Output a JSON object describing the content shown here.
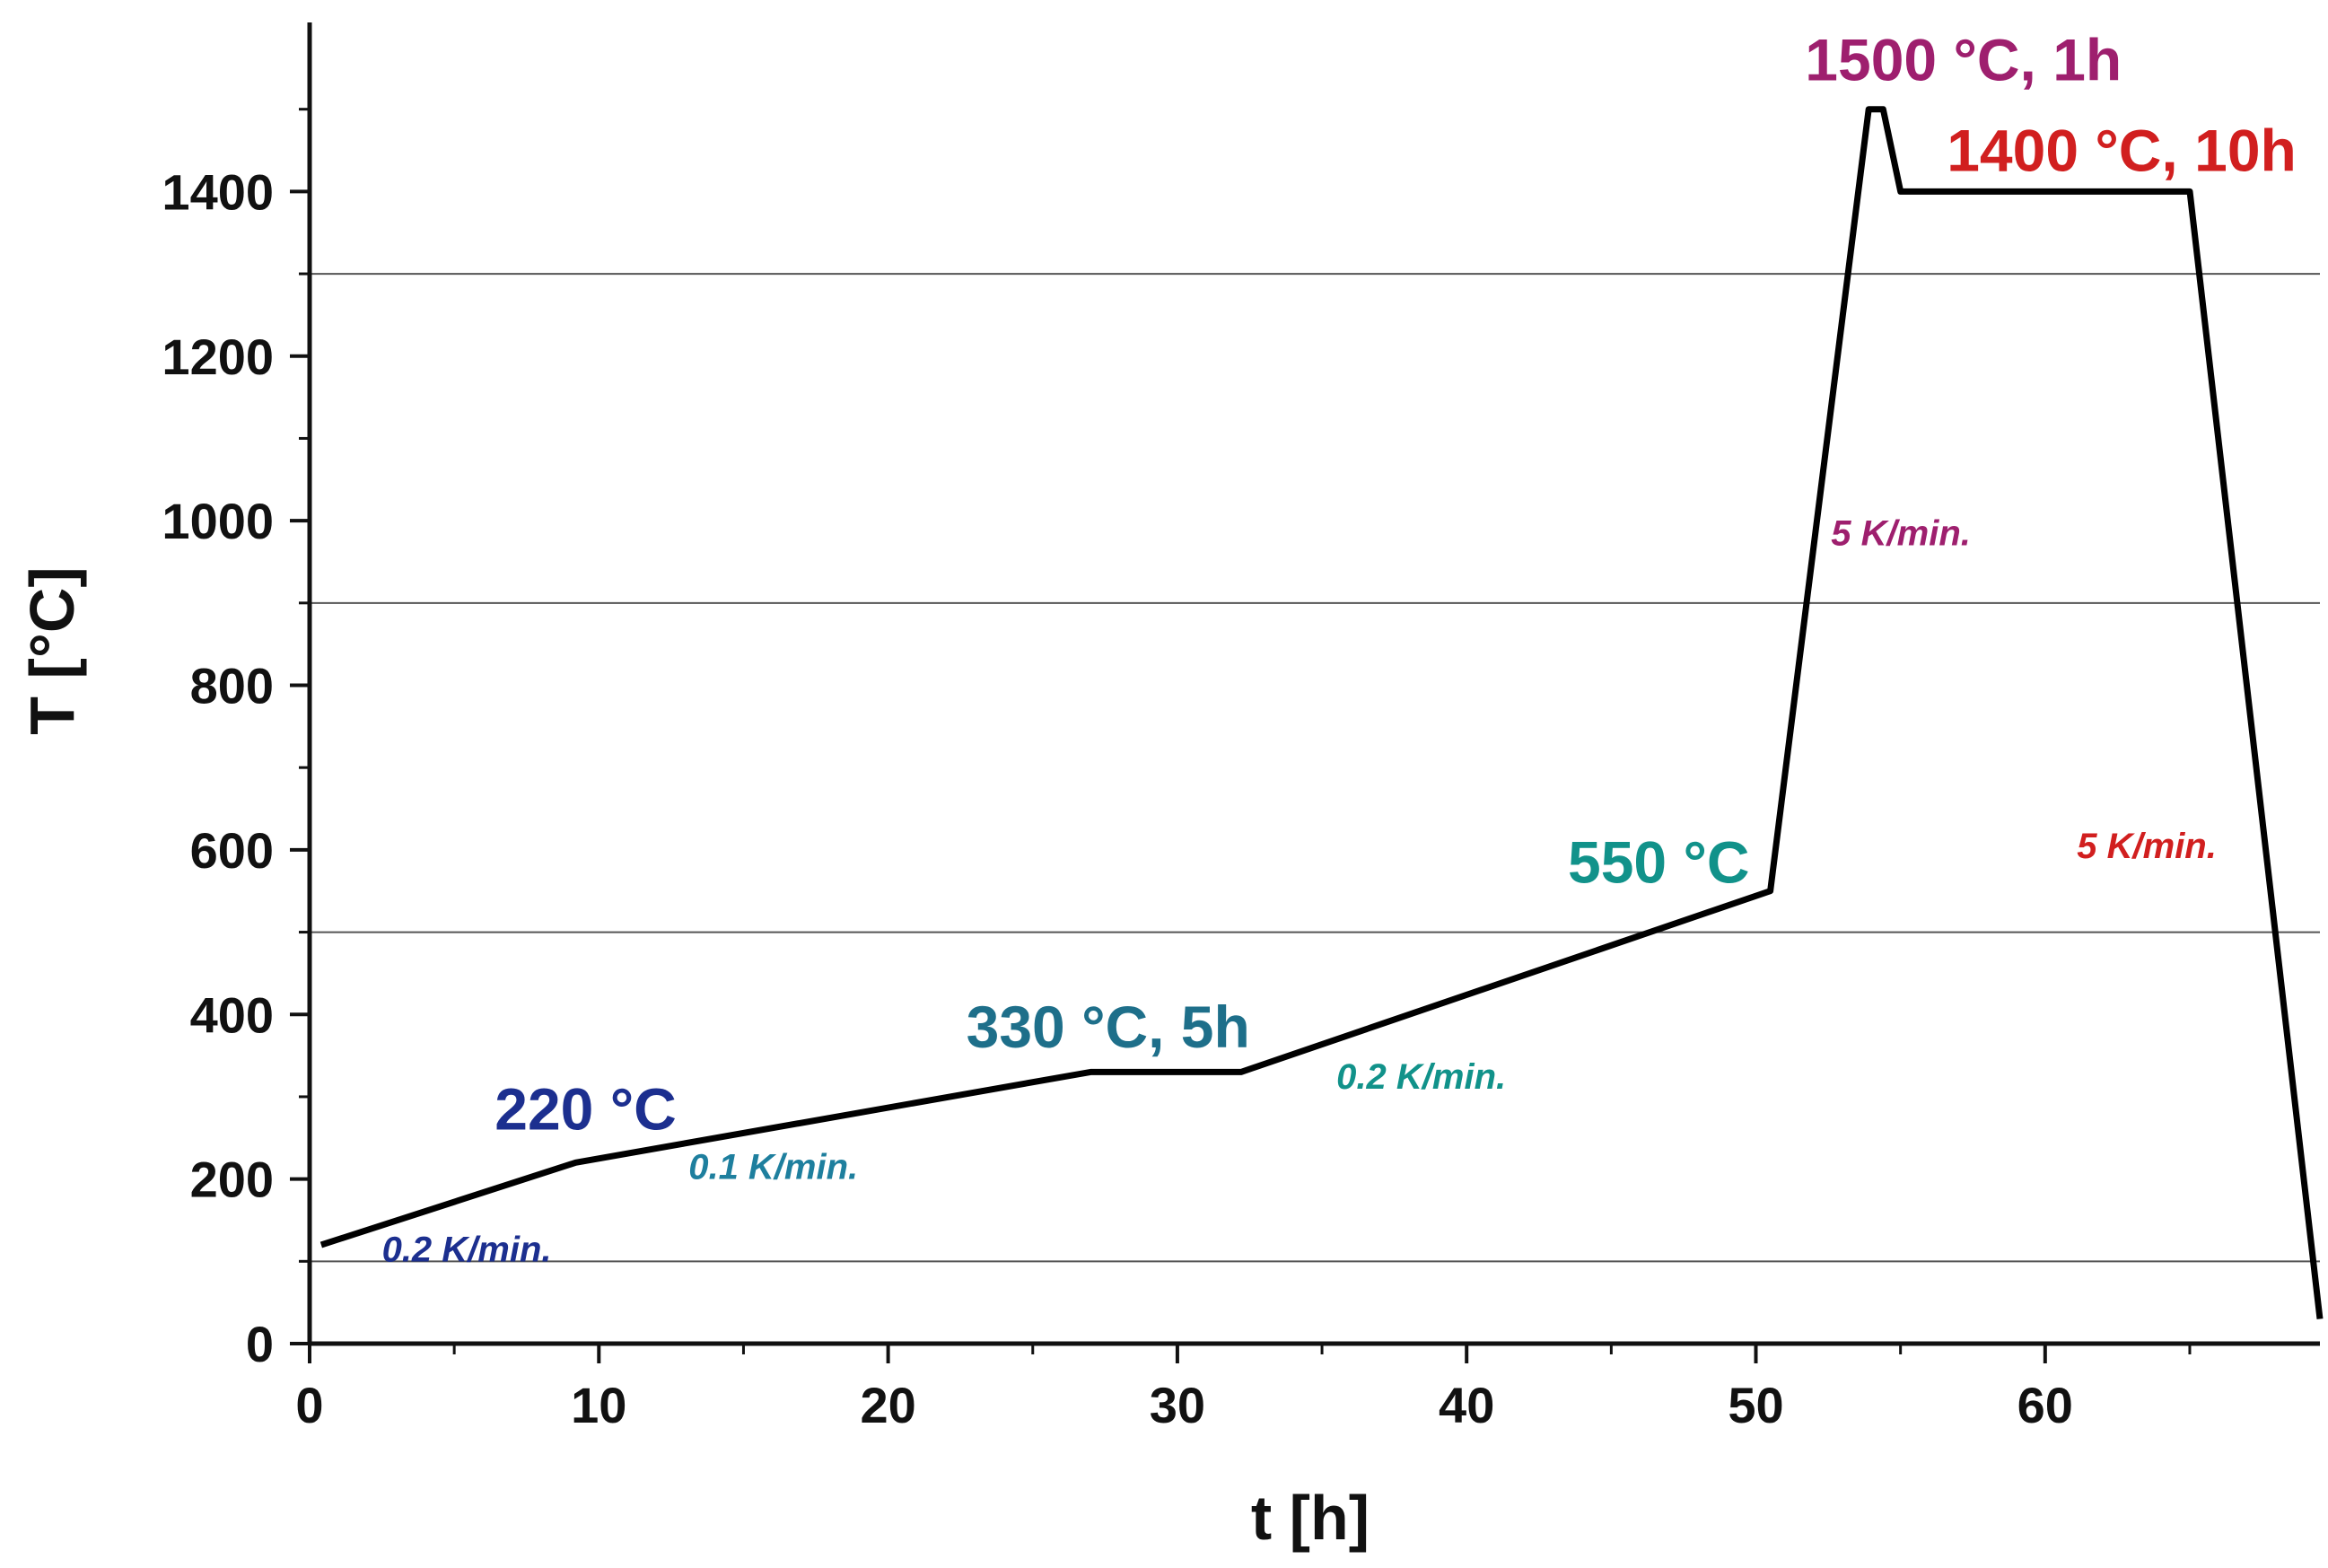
{
  "chart_data": {
    "type": "line",
    "xlabel": "t [h]",
    "ylabel": "T [°C]",
    "xlim": [
      0,
      69.5
    ],
    "ylim": [
      0,
      1600
    ],
    "xticks": [
      0,
      10,
      20,
      30,
      40,
      50,
      60
    ],
    "yticks": [
      0,
      200,
      400,
      600,
      800,
      1000,
      1200,
      1400
    ],
    "grid_y": [
      100,
      500,
      900,
      1300
    ],
    "series": [
      {
        "color": "#000000",
        "x": [
          0.4,
          9.2,
          27,
          32.2,
          50.5,
          53.9,
          54.4,
          55,
          65,
          69.5
        ],
        "y": [
          120,
          220,
          330,
          330,
          550,
          1500,
          1500,
          1400,
          1400,
          30
        ]
      }
    ],
    "annotations": [
      {
        "text": "220 °C",
        "x": 6.4,
        "y": 260,
        "color": "#1c2f8f",
        "kind": "temp"
      },
      {
        "text": "0.2 K/min.",
        "x": 2.5,
        "y": 100,
        "color": "#1c2f8f",
        "kind": "rate"
      },
      {
        "text": "0.1 K/min.",
        "x": 13.1,
        "y": 200,
        "color": "#1e7f9e",
        "kind": "rate"
      },
      {
        "text": "330 °C, 5h",
        "x": 22.7,
        "y": 360,
        "color": "#1e6f8a",
        "kind": "temp"
      },
      {
        "text": "0.2 K/min.",
        "x": 35.5,
        "y": 310,
        "color": "#11928a",
        "kind": "rate"
      },
      {
        "text": "550 °C",
        "x": 43.5,
        "y": 560,
        "color": "#11928a",
        "kind": "temp"
      },
      {
        "text": "5 K/min.",
        "x": 52.6,
        "y": 970,
        "color": "#9e1f6e",
        "kind": "rate"
      },
      {
        "text": "1500 °C, 1h",
        "x": 51.7,
        "y": 1535,
        "color": "#9e1f6e",
        "kind": "temp"
      },
      {
        "text": "1400 °C, 10h",
        "x": 56.6,
        "y": 1425,
        "color": "#d11f1f",
        "kind": "temp"
      },
      {
        "text": "5 K/min.",
        "x": 61.1,
        "y": 590,
        "color": "#d11f1f",
        "kind": "rate"
      }
    ]
  }
}
